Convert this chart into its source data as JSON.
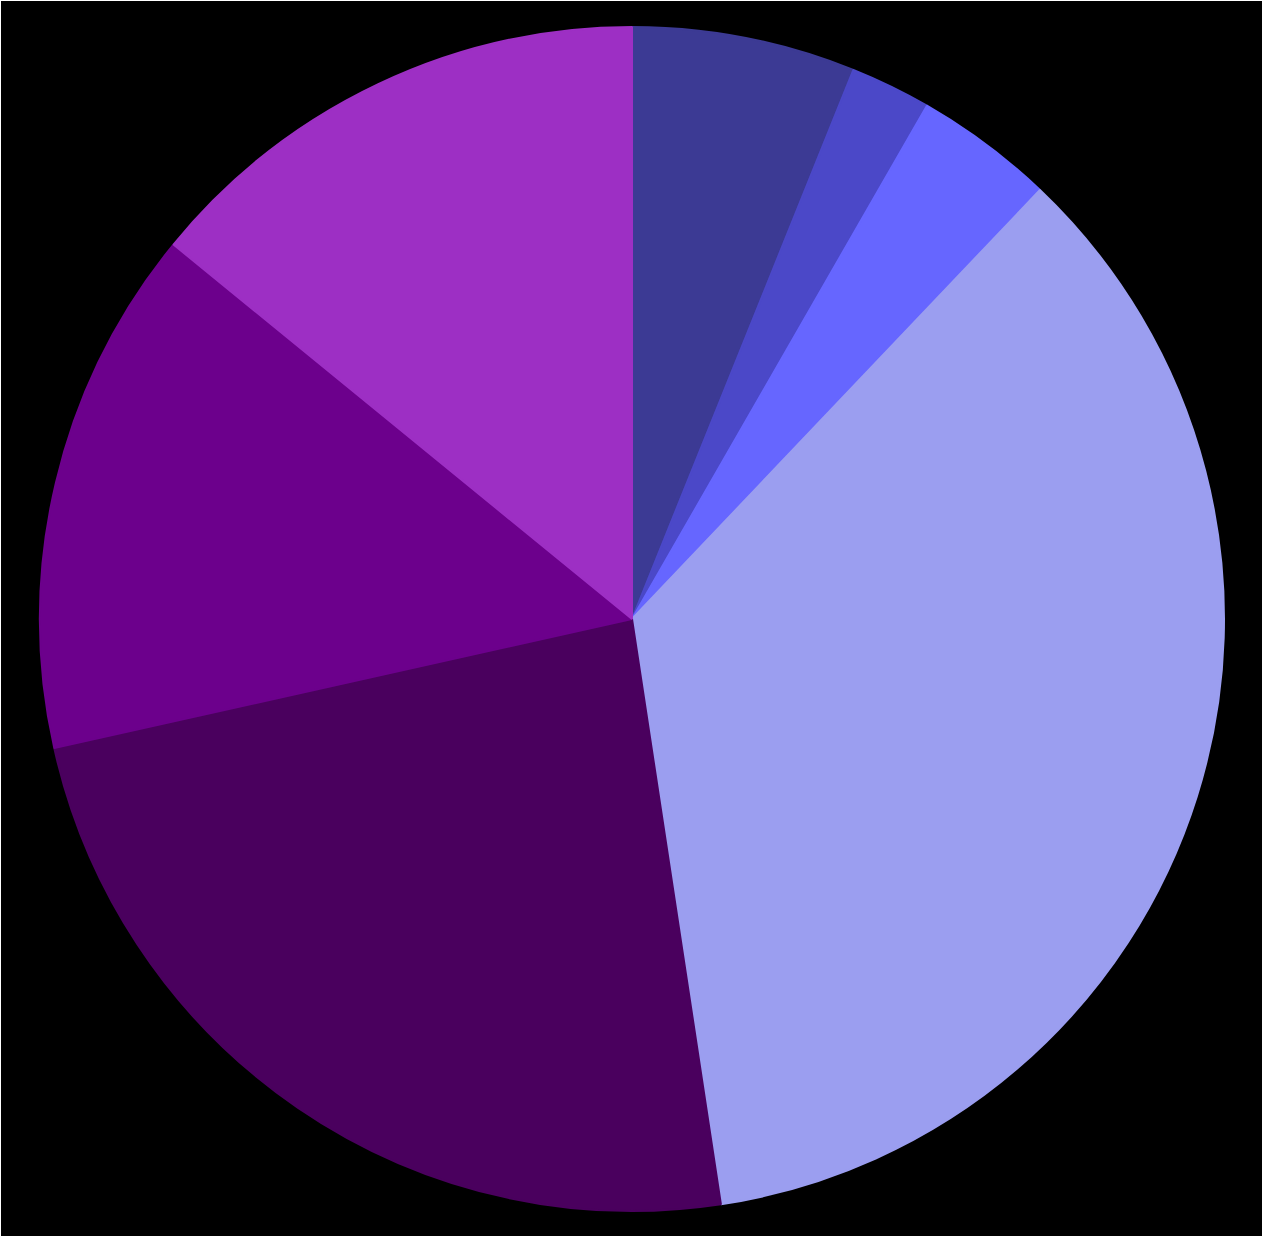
{
  "chart_data": {
    "type": "pie",
    "categories": [
      null,
      null,
      null,
      null,
      null,
      null,
      null
    ],
    "values": [
      6.1,
      2.2,
      3.8,
      35.5,
      23.9,
      14.4,
      14.1
    ],
    "colors": [
      "#3c3a94",
      "#4b48c8",
      "#6666ff",
      "#9b9ef0",
      "#4a005e",
      "#6c008c",
      "#9d2fc4"
    ]
  }
}
